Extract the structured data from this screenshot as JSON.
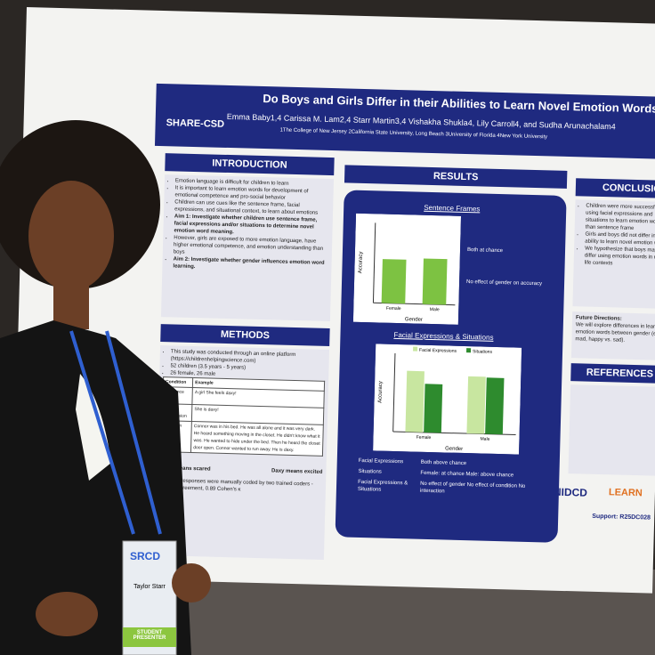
{
  "poster": {
    "logo": "SHARE-CSD",
    "title": "Do Boys and Girls Differ in their Abilities to Learn Novel Emotion Words?",
    "authors": "Emma Baby1,4 Carissa M. Lam2,4 Starr Martin3,4 Vishakha Shukla4, Lily Carroll4, and Sudha Arunachalam4",
    "affiliations": "1The College of New Jersey 2California State University, Long Beach 3University of Florida 4New York University",
    "introduction": {
      "heading": "INTRODUCTION",
      "bullets": [
        "Emotion language is difficult for children to learn",
        "It is important to learn emotion words for development of emotional competence and pro-social behavior",
        "Children can use cues like the sentence frame, facial expressions, and situational context, to learn about emotions",
        "Aim 1: Investigate whether children use sentence frame, facial expressions and/or situations to determine novel emotion word meaning.",
        "However, girls are exposed to more emotion language, have higher emotional competence, and emotion understanding than boys",
        "Aim 2: Investigate whether gender influences emotion word learning."
      ]
    },
    "methods": {
      "heading": "METHODS",
      "bullets": [
        "This study was conducted through an online platform (https://childrenhelpingscience.com)",
        "52 children (3.5 years - 5 years)",
        "26 female, 26 male"
      ],
      "table": {
        "header": [
          "Condition",
          "Example"
        ],
        "rows": [
          [
            "Sentence Frame",
            "A girl She feels daxy!"
          ],
          [
            "Facial Expression",
            "She is daxy!"
          ],
          [
            "Situation",
            "Connor was in his bed. He was all alone and it was very dark. He heard something moving in the closet. He didn't know what it was. He wanted to hide under the bed. Then he heard the closet door open. Connor wanted to run away. He is daxy."
          ]
        ]
      },
      "daxy_left": "Daxy means scared",
      "daxy_right": "Daxy means excited",
      "footer": "Pointing responses were manually coded by two trained coders - 92.7% agreement, 0.89 Cohen's κ"
    },
    "results": {
      "heading": "RESULTS",
      "sentence_frames": {
        "title": "Sentence Frames",
        "y_label": "Accuracy",
        "x_label": "Gender",
        "categories": [
          "Female",
          "Male"
        ],
        "values": [
          0.55,
          0.57
        ],
        "color": "#7dc242",
        "ylim": [
          0,
          1
        ]
      },
      "sentence_notes": [
        "Both at chance",
        "No effect of gender on accuracy"
      ],
      "facial": {
        "title": "Facial Expressions & Situations",
        "y_label": "Accuracy",
        "x_label": "Gender",
        "categories": [
          "Female",
          "Male"
        ],
        "ylim": [
          0,
          1
        ],
        "series": [
          {
            "name": "Facial Expressions",
            "color": "#c8e6a0",
            "values": [
              0.78,
              0.73
            ]
          },
          {
            "name": "Situations",
            "color": "#2e8b2e",
            "values": [
              0.62,
              0.72
            ]
          }
        ]
      },
      "stats": [
        [
          "Facial Expressions",
          "Both above chance"
        ],
        [
          "Situations",
          "Female: at chance  Male: above chance"
        ],
        [
          "Facial Expressions & Situations",
          "No effect of gender  No effect of condition  No interaction"
        ]
      ]
    },
    "conclusions": {
      "heading": "CONCLUSIONS",
      "bullets": [
        "Children were more successful using facial expressions and situations to learn emotion words than sentence frame",
        "Girls and boys did not differ in their ability to learn novel emotion words",
        "We hypothesize that boys may differ using emotion words in real-life contexts"
      ],
      "future_heading": "Future Directions:",
      "future": "We will explore differences in learning emotion words between gender (e.g. mad, happy vs. sad)."
    },
    "references": {
      "heading": "REFERENCES"
    },
    "funders": [
      "NIDCD",
      "LEARN"
    ],
    "support": "Support: R25DC028"
  },
  "badge": {
    "org": "SRCD",
    "name": "Taylor Starr",
    "ribbon": "STUDENT PRESENTER"
  }
}
